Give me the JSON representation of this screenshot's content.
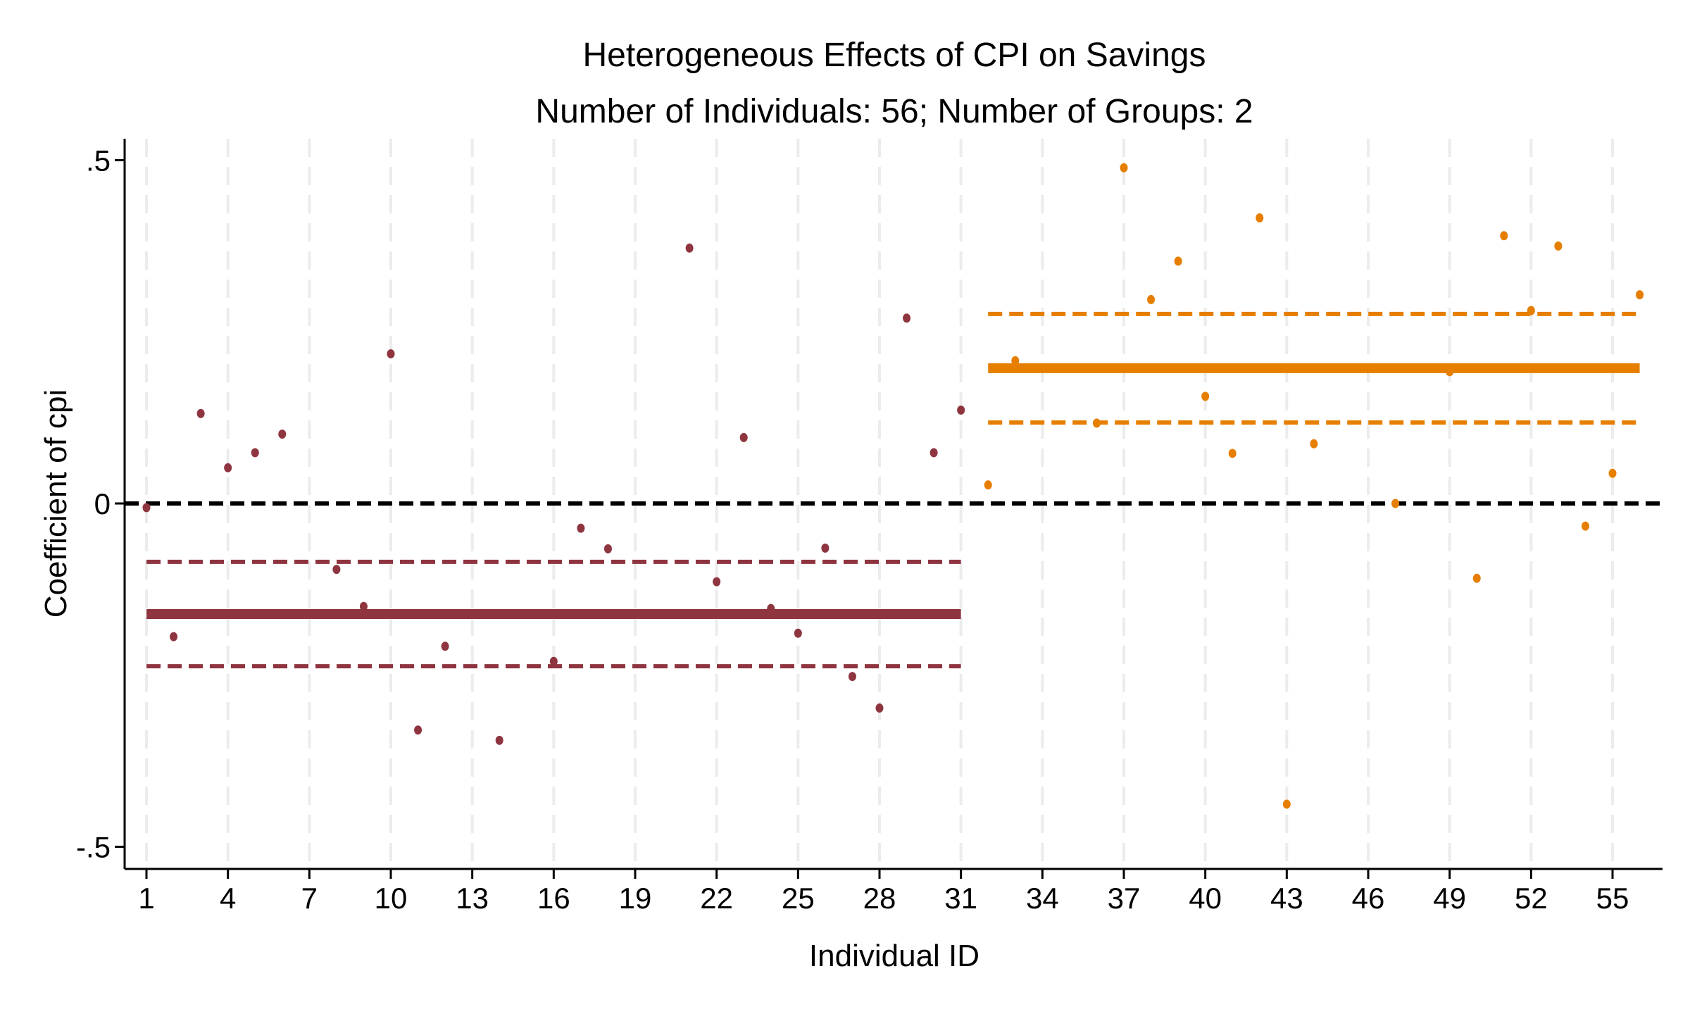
{
  "chart_data": {
    "type": "scatter",
    "title": "Heterogeneous Effects of CPI on Savings",
    "subtitle": "Number of Individuals: 56; Number of Groups: 2",
    "xlabel": "Individual ID",
    "ylabel": "Coefficient of cpi",
    "xlim": [
      0.5,
      57
    ],
    "ylim": [
      -0.53,
      0.53
    ],
    "x_ticks": [
      1,
      4,
      7,
      10,
      13,
      16,
      19,
      22,
      25,
      28,
      31,
      34,
      37,
      40,
      43,
      46,
      49,
      52,
      55
    ],
    "y_ticks": [
      {
        "value": 0.5,
        "label": ".5"
      },
      {
        "value": 0,
        "label": "0"
      },
      {
        "value": -0.5,
        "label": "-.5"
      }
    ],
    "grid": "vertical dashed at x ticks",
    "reference_line": {
      "y": 0,
      "style": "dashed",
      "color": "#000000"
    },
    "groups": [
      {
        "color": "#8E3540",
        "x_range": [
          1,
          31
        ],
        "mean": -0.161,
        "ci": [
          -0.237,
          -0.085
        ],
        "points": [
          [
            1,
            -0.006
          ],
          [
            2,
            -0.194
          ],
          [
            3,
            0.131
          ],
          [
            4,
            0.052
          ],
          [
            5,
            0.074
          ],
          [
            6,
            0.101
          ],
          [
            8,
            -0.096
          ],
          [
            9,
            -0.15
          ],
          [
            10,
            0.218
          ],
          [
            11,
            -0.33
          ],
          [
            12,
            -0.208
          ],
          [
            14,
            -0.345
          ],
          [
            16,
            -0.23
          ],
          [
            17,
            -0.036
          ],
          [
            18,
            -0.066
          ],
          [
            21,
            0.372
          ],
          [
            22,
            -0.114
          ],
          [
            23,
            0.096
          ],
          [
            24,
            -0.153
          ],
          [
            25,
            -0.189
          ],
          [
            26,
            -0.065
          ],
          [
            27,
            -0.252
          ],
          [
            28,
            -0.298
          ],
          [
            29,
            0.27
          ],
          [
            30,
            0.074
          ],
          [
            31,
            0.136
          ]
        ]
      },
      {
        "color": "#E67E00",
        "x_range": [
          32,
          56
        ],
        "mean": 0.197,
        "ci": [
          0.118,
          0.276
        ],
        "points": [
          [
            32,
            0.027
          ],
          [
            33,
            0.208
          ],
          [
            36,
            0.117
          ],
          [
            37,
            0.489
          ],
          [
            38,
            0.297
          ],
          [
            39,
            0.353
          ],
          [
            40,
            0.156
          ],
          [
            41,
            0.073
          ],
          [
            42,
            0.416
          ],
          [
            43,
            -0.438
          ],
          [
            44,
            0.087
          ],
          [
            47,
            0.0
          ],
          [
            49,
            0.192
          ],
          [
            50,
            -0.109
          ],
          [
            51,
            0.39
          ],
          [
            52,
            0.281
          ],
          [
            53,
            0.375
          ],
          [
            54,
            -0.033
          ],
          [
            55,
            0.044
          ],
          [
            56,
            0.304
          ]
        ]
      }
    ]
  }
}
